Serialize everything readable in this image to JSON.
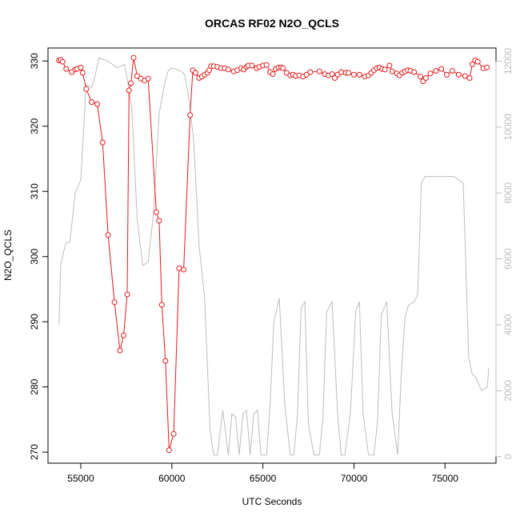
{
  "chart_data": {
    "type": "line",
    "title": "ORCAS RF02 N2O_QCLS",
    "xlabel": "UTC Seconds",
    "ylabel": "N2O_QCLS",
    "xlim": [
      53200,
      77800
    ],
    "ylim": [
      268.3,
      332.0
    ],
    "y2lim": [
      -200,
      12400
    ],
    "xticks": [
      55000,
      60000,
      65000,
      70000,
      75000
    ],
    "yticks": [
      270,
      280,
      290,
      300,
      310,
      320,
      330
    ],
    "y2ticks": [
      0,
      2000,
      4000,
      6000,
      8000,
      10000,
      12000
    ],
    "grid": false,
    "series": [
      {
        "role": "N2O (left axis, points + line)",
        "color": "#e31a1c",
        "x": [
          53800,
          53900,
          54000,
          54200,
          54500,
          54700,
          54800,
          55000,
          55100,
          55300,
          55600,
          55900,
          56200,
          56500,
          56850,
          57150,
          57350,
          57550,
          57650,
          57750,
          57900,
          58100,
          58300,
          58500,
          58700,
          59150,
          59300,
          59450,
          59650,
          59850,
          60100,
          60400,
          60650,
          61000,
          61150,
          61300,
          61500,
          61650,
          61800,
          61950,
          62050,
          62150,
          62300,
          62500,
          62700,
          62900,
          63100,
          63400,
          63600,
          63800,
          63950,
          64100,
          64200,
          64400,
          64650,
          64800,
          65000,
          65200,
          65400,
          65550,
          65700,
          65850,
          66000,
          66100,
          66300,
          66500,
          66650,
          66800,
          67000,
          67200,
          67400,
          67600,
          68100,
          68400,
          68600,
          68800,
          68950,
          69100,
          69300,
          69550,
          69700,
          70000,
          70300,
          70600,
          70800,
          70950,
          71100,
          71250,
          71400,
          71550,
          71700,
          71950,
          72100,
          72350,
          72500,
          72650,
          72800,
          72950,
          73100,
          73300,
          73650,
          73800,
          73950,
          74200,
          74500,
          74800,
          75100,
          75400,
          75750,
          76100,
          76350,
          76500,
          76650,
          76800,
          77100,
          77300
        ],
        "y": [
          330.1,
          330.2,
          329.9,
          328.8,
          328.3,
          328.7,
          328.8,
          329.0,
          328.2,
          325.7,
          323.7,
          323.4,
          317.5,
          303.3,
          293.0,
          285.6,
          287.9,
          294.2,
          325.5,
          326.6,
          330.5,
          327.7,
          327.3,
          327.0,
          327.3,
          306.8,
          305.5,
          292.6,
          284.0,
          270.3,
          272.8,
          298.2,
          298.0,
          321.7,
          328.6,
          328.2,
          327.4,
          327.6,
          327.9,
          328.2,
          328.6,
          329.2,
          329.2,
          329.1,
          328.9,
          328.9,
          328.7,
          328.4,
          328.6,
          328.9,
          328.7,
          329.1,
          329.3,
          329.3,
          328.9,
          329.1,
          329.3,
          329.4,
          328.3,
          328.0,
          328.8,
          329.0,
          329.0,
          328.9,
          328.2,
          327.8,
          327.9,
          327.7,
          327.8,
          327.6,
          327.9,
          328.3,
          328.4,
          328.0,
          327.8,
          328.0,
          327.4,
          327.9,
          328.3,
          328.2,
          328.2,
          327.9,
          327.9,
          327.6,
          327.8,
          328.2,
          328.6,
          328.9,
          329.0,
          328.8,
          328.7,
          329.3,
          328.4,
          328.1,
          327.8,
          328.2,
          328.4,
          328.6,
          328.5,
          328.3,
          327.6,
          326.9,
          327.4,
          328.1,
          328.5,
          328.8,
          327.9,
          328.5,
          327.9,
          327.7,
          327.4,
          329.5,
          330.1,
          329.9,
          328.9,
          329.0
        ]
      },
      {
        "role": "Altitude (right axis, line)",
        "color": "#bdbdbd",
        "x": [
          53800,
          53900,
          54050,
          54200,
          54400,
          54700,
          55000,
          55300,
          55600,
          55800,
          56000,
          56500,
          57000,
          57400,
          57600,
          57800,
          58100,
          58400,
          58700,
          59000,
          59300,
          59600,
          59800,
          60000,
          60500,
          60700,
          60900,
          61200,
          61500,
          61800,
          62100,
          62300,
          62500,
          62800,
          63100,
          63300,
          63500,
          63700,
          63900,
          64100,
          64300,
          64500,
          64700,
          64900,
          65200,
          65400,
          65600,
          65900,
          66200,
          66500,
          66700,
          66900,
          67100,
          67300,
          67500,
          67800,
          68100,
          68300,
          68500,
          68800,
          69100,
          69300,
          69500,
          69800,
          70100,
          70300,
          70500,
          70800,
          71100,
          71300,
          71500,
          71800,
          72100,
          72400,
          72600,
          72800,
          73000,
          73300,
          73500,
          73700,
          73800,
          73900,
          74100,
          74300,
          74500,
          75000,
          75500,
          76000,
          76300,
          76500,
          76700,
          77000,
          77300,
          77350,
          77400
        ],
        "y": [
          4000,
          5800,
          6200,
          6500,
          6500,
          8000,
          8400,
          11300,
          11200,
          11600,
          12100,
          12000,
          11800,
          11900,
          11300,
          10600,
          7200,
          5800,
          5900,
          7400,
          10400,
          11300,
          11700,
          11800,
          11700,
          11600,
          11000,
          9600,
          6400,
          4800,
          800,
          50,
          50,
          1400,
          50,
          1300,
          1200,
          50,
          1300,
          1400,
          50,
          1300,
          1400,
          50,
          50,
          1600,
          4100,
          4800,
          1600,
          50,
          50,
          1300,
          4500,
          4700,
          1000,
          50,
          50,
          1200,
          4400,
          4700,
          1300,
          50,
          50,
          1300,
          4400,
          4700,
          1300,
          50,
          50,
          1100,
          4300,
          4700,
          1300,
          50,
          2500,
          4200,
          4600,
          4700,
          4900,
          8300,
          8400,
          8500,
          8500,
          8500,
          8500,
          8500,
          8500,
          8300,
          3000,
          2500,
          2400,
          2000,
          2100,
          2300,
          2700
        ]
      }
    ]
  }
}
